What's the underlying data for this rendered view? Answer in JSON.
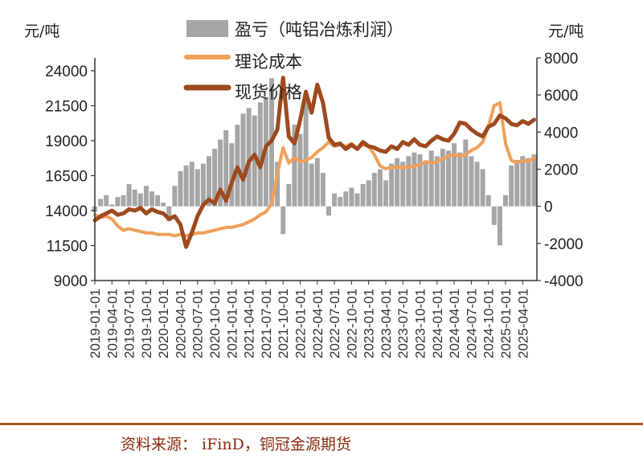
{
  "chart_data": {
    "type": "bar+line",
    "left_axis": {
      "unit": "元/吨",
      "ticks": [
        24000,
        21500,
        19000,
        16500,
        14000,
        11500,
        9000
      ],
      "range": [
        9000,
        25500
      ]
    },
    "right_axis": {
      "unit": "元/吨",
      "ticks": [
        8000,
        6000,
        4000,
        2000,
        0,
        -2000,
        -4000
      ],
      "range": [
        -4000,
        8300
      ]
    },
    "x_ticks": [
      "2019-01-01",
      "2019-04-01",
      "2019-07-01",
      "2019-10-01",
      "2020-01-01",
      "2020-04-01",
      "2020-07-01",
      "2020-10-01",
      "2021-01-01",
      "2021-04-01",
      "2021-07-01",
      "2021-10-01",
      "2022-01-01",
      "2022-04-01",
      "2022-07-01",
      "2022-10-01",
      "2023-01-01",
      "2023-04-01",
      "2023-07-01",
      "2023-10-01",
      "2024-01-01",
      "2024-04-01",
      "2024-07-01",
      "2024-10-01",
      "2025-01-01",
      "2025-04-01"
    ],
    "x_range_months": [
      0,
      77.5
    ],
    "legend_position": "top-center",
    "grid": false,
    "series": [
      {
        "name": "盈亏（吨铝冶炼利润）",
        "type": "bar",
        "axis": "right",
        "color": "#a6a6a6",
        "points": [
          [
            0,
            -300
          ],
          [
            1,
            400
          ],
          [
            2,
            600
          ],
          [
            3,
            100
          ],
          [
            4,
            500
          ],
          [
            5,
            600
          ],
          [
            6,
            1200
          ],
          [
            7,
            900
          ],
          [
            8,
            700
          ],
          [
            9,
            1100
          ],
          [
            10,
            800
          ],
          [
            11,
            600
          ],
          [
            12,
            200
          ],
          [
            13,
            -800
          ],
          [
            14,
            1100
          ],
          [
            15,
            1900
          ],
          [
            16,
            2200
          ],
          [
            17,
            2400
          ],
          [
            18,
            2000
          ],
          [
            19,
            2300
          ],
          [
            20,
            2700
          ],
          [
            21,
            3100
          ],
          [
            22,
            3600
          ],
          [
            23,
            4100
          ],
          [
            24,
            3400
          ],
          [
            25,
            4400
          ],
          [
            26,
            5000
          ],
          [
            27,
            5300
          ],
          [
            28,
            4900
          ],
          [
            29,
            5600
          ],
          [
            30,
            5900
          ],
          [
            31,
            6900
          ],
          [
            32,
            2400
          ],
          [
            33,
            -1500
          ],
          [
            34,
            1200
          ],
          [
            35,
            4400
          ],
          [
            36,
            3900
          ],
          [
            37,
            5800
          ],
          [
            38,
            2300
          ],
          [
            39,
            2600
          ],
          [
            40,
            1800
          ],
          [
            41,
            -500
          ],
          [
            42,
            700
          ],
          [
            43,
            500
          ],
          [
            44,
            800
          ],
          [
            45,
            1000
          ],
          [
            46,
            700
          ],
          [
            47,
            1200
          ],
          [
            48,
            1400
          ],
          [
            49,
            1800
          ],
          [
            50,
            2000
          ],
          [
            51,
            1400
          ],
          [
            52,
            2300
          ],
          [
            53,
            2600
          ],
          [
            54,
            2400
          ],
          [
            55,
            2700
          ],
          [
            56,
            2900
          ],
          [
            57,
            2800
          ],
          [
            58,
            2400
          ],
          [
            59,
            3000
          ],
          [
            60,
            2700
          ],
          [
            61,
            3100
          ],
          [
            62,
            3000
          ],
          [
            63,
            3400
          ],
          [
            64,
            2900
          ],
          [
            65,
            3600
          ],
          [
            66,
            2700
          ],
          [
            67,
            2400
          ],
          [
            68,
            2000
          ],
          [
            69,
            600
          ],
          [
            70,
            -1000
          ],
          [
            71,
            -2100
          ],
          [
            72,
            600
          ],
          [
            73,
            2200
          ],
          [
            74,
            2500
          ],
          [
            75,
            2700
          ],
          [
            76,
            2600
          ],
          [
            77,
            2800
          ]
        ]
      },
      {
        "name": "理论成本",
        "type": "line",
        "axis": "left",
        "color": "#f0a05a",
        "points": [
          [
            0,
            13700
          ],
          [
            1,
            13500
          ],
          [
            2,
            13600
          ],
          [
            3,
            13400
          ],
          [
            4,
            12900
          ],
          [
            5,
            12600
          ],
          [
            6,
            12700
          ],
          [
            7,
            12600
          ],
          [
            8,
            12500
          ],
          [
            9,
            12400
          ],
          [
            10,
            12400
          ],
          [
            11,
            12300
          ],
          [
            12,
            12300
          ],
          [
            13,
            12300
          ],
          [
            14,
            12200
          ],
          [
            15,
            12300
          ],
          [
            16,
            12200
          ],
          [
            17,
            12300
          ],
          [
            18,
            12400
          ],
          [
            19,
            12400
          ],
          [
            20,
            12500
          ],
          [
            21,
            12600
          ],
          [
            22,
            12700
          ],
          [
            23,
            12800
          ],
          [
            24,
            12800
          ],
          [
            25,
            12900
          ],
          [
            26,
            13000
          ],
          [
            27,
            13200
          ],
          [
            28,
            13400
          ],
          [
            29,
            13700
          ],
          [
            30,
            13900
          ],
          [
            31,
            14500
          ],
          [
            32,
            16600
          ],
          [
            33,
            18500
          ],
          [
            34,
            17400
          ],
          [
            35,
            17800
          ],
          [
            36,
            17500
          ],
          [
            37,
            17600
          ],
          [
            38,
            17800
          ],
          [
            39,
            18200
          ],
          [
            40,
            18500
          ],
          [
            41,
            18900
          ],
          [
            42,
            18600
          ],
          [
            43,
            18700
          ],
          [
            44,
            18600
          ],
          [
            45,
            18800
          ],
          [
            46,
            18400
          ],
          [
            47,
            18700
          ],
          [
            48,
            18600
          ],
          [
            49,
            18000
          ],
          [
            50,
            17200
          ],
          [
            51,
            17000
          ],
          [
            52,
            17100
          ],
          [
            53,
            17100
          ],
          [
            54,
            17100
          ],
          [
            55,
            17100
          ],
          [
            56,
            17200
          ],
          [
            57,
            17300
          ],
          [
            58,
            17500
          ],
          [
            59,
            17400
          ],
          [
            60,
            17500
          ],
          [
            61,
            17700
          ],
          [
            62,
            17900
          ],
          [
            63,
            18000
          ],
          [
            64,
            17900
          ],
          [
            65,
            18000
          ],
          [
            66,
            18300
          ],
          [
            67,
            18500
          ],
          [
            68,
            18900
          ],
          [
            69,
            20000
          ],
          [
            70,
            21500
          ],
          [
            71,
            21700
          ],
          [
            72,
            18800
          ],
          [
            73,
            17600
          ],
          [
            74,
            17400
          ],
          [
            75,
            17600
          ],
          [
            76,
            17500
          ],
          [
            77,
            17800
          ]
        ]
      },
      {
        "name": "现货价格",
        "type": "line",
        "axis": "left",
        "color": "#9e4a1e",
        "points": [
          [
            0,
            13300
          ],
          [
            1,
            13600
          ],
          [
            2,
            13800
          ],
          [
            3,
            14000
          ],
          [
            4,
            13700
          ],
          [
            5,
            13800
          ],
          [
            6,
            14100
          ],
          [
            7,
            14000
          ],
          [
            8,
            14200
          ],
          [
            9,
            13800
          ],
          [
            10,
            14100
          ],
          [
            11,
            13900
          ],
          [
            12,
            13800
          ],
          [
            13,
            13400
          ],
          [
            14,
            13600
          ],
          [
            15,
            13000
          ],
          [
            16,
            11400
          ],
          [
            17,
            12400
          ],
          [
            18,
            13600
          ],
          [
            19,
            14400
          ],
          [
            20,
            14800
          ],
          [
            21,
            14500
          ],
          [
            22,
            15500
          ],
          [
            23,
            14700
          ],
          [
            24,
            16000
          ],
          [
            25,
            17100
          ],
          [
            26,
            16200
          ],
          [
            27,
            17500
          ],
          [
            28,
            18000
          ],
          [
            29,
            17100
          ],
          [
            30,
            18600
          ],
          [
            31,
            19000
          ],
          [
            32,
            19800
          ],
          [
            33,
            23500
          ],
          [
            34,
            19300
          ],
          [
            35,
            18800
          ],
          [
            36,
            20500
          ],
          [
            37,
            22500
          ],
          [
            38,
            21000
          ],
          [
            39,
            23000
          ],
          [
            40,
            21700
          ],
          [
            41,
            19200
          ],
          [
            42,
            18700
          ],
          [
            43,
            18800
          ],
          [
            44,
            18400
          ],
          [
            45,
            18700
          ],
          [
            46,
            18400
          ],
          [
            47,
            18900
          ],
          [
            48,
            18600
          ],
          [
            49,
            18500
          ],
          [
            50,
            18300
          ],
          [
            51,
            18200
          ],
          [
            52,
            18600
          ],
          [
            53,
            18400
          ],
          [
            54,
            18900
          ],
          [
            55,
            18700
          ],
          [
            56,
            19100
          ],
          [
            57,
            18700
          ],
          [
            58,
            18600
          ],
          [
            59,
            19000
          ],
          [
            60,
            19300
          ],
          [
            61,
            19100
          ],
          [
            62,
            19000
          ],
          [
            63,
            19500
          ],
          [
            64,
            20300
          ],
          [
            65,
            20200
          ],
          [
            66,
            19800
          ],
          [
            67,
            19500
          ],
          [
            68,
            19300
          ],
          [
            69,
            20000
          ],
          [
            70,
            20200
          ],
          [
            71,
            20800
          ],
          [
            72,
            20600
          ],
          [
            73,
            20200
          ],
          [
            74,
            20100
          ],
          [
            75,
            20400
          ],
          [
            76,
            20200
          ],
          [
            77,
            20500
          ]
        ]
      }
    ]
  },
  "footer": {
    "source": "资料来源： iFinD，铜冠金源期货"
  }
}
